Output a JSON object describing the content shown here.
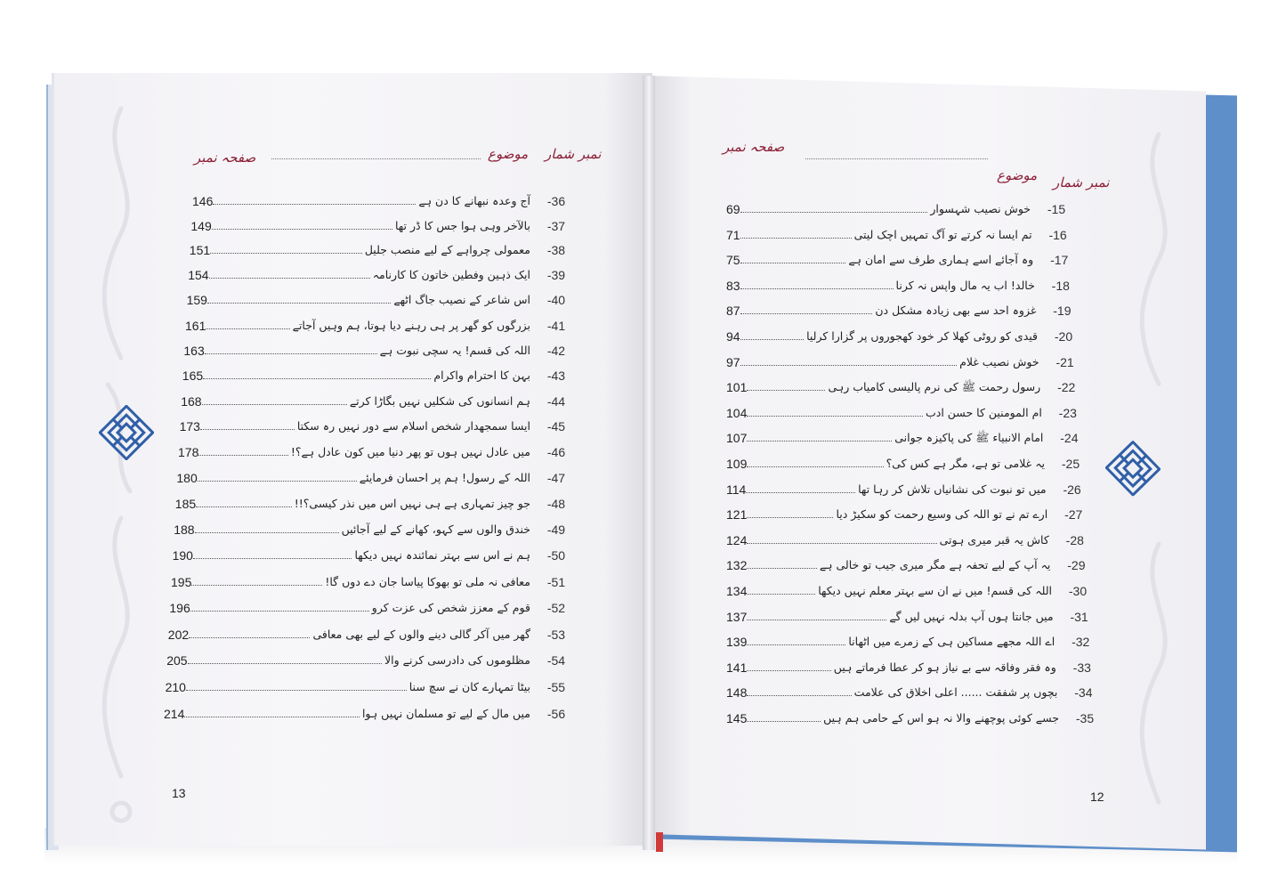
{
  "left_page": {
    "header": {
      "serial": "نمبر شمار",
      "topic": "موضوع",
      "page": "صفحہ نمبر"
    },
    "page_number": "13",
    "entries": [
      {
        "num": "-36",
        "title": "آج وعدہ نبھانے کا دن ہے",
        "page": "146"
      },
      {
        "num": "-37",
        "title": "بالآخر وہی ہوا جس کا ڈر تھا",
        "page": "149"
      },
      {
        "num": "-38",
        "title": "معمولی چرواہے کے لیے منصب جلیل",
        "page": "151"
      },
      {
        "num": "-39",
        "title": "ایک ذہین وفطین خاتون کا کارنامہ",
        "page": "154"
      },
      {
        "num": "-40",
        "title": "اس شاعر کے نصیب جاگ اٹھے",
        "page": "159"
      },
      {
        "num": "-41",
        "title": "بزرگوں کو گھر پر ہی رہنے دیا ہوتا، ہم وہیں آجاتے",
        "page": "161"
      },
      {
        "num": "-42",
        "title": "اللہ کی قسم! یہ سچی نبوت ہے",
        "page": "163"
      },
      {
        "num": "-43",
        "title": "بہن کا احترام واکرام",
        "page": "165"
      },
      {
        "num": "-44",
        "title": "ہم انسانوں کی شکلیں نہیں بگاڑا کرتے",
        "page": "168"
      },
      {
        "num": "-45",
        "title": "ایسا سمجھدار شخص اسلام سے دور نہیں رہ سکتا",
        "page": "173"
      },
      {
        "num": "-46",
        "title": "میں عادل نہیں ہوں تو پھر دنیا میں کون عادل ہے؟!",
        "page": "178"
      },
      {
        "num": "-47",
        "title": "اللہ کے رسول! ہم پر احسان فرمایئے",
        "page": "180"
      },
      {
        "num": "-48",
        "title": "جو چیز تمہاری ہے ہی نہیں اس میں نذر کیسی؟!!",
        "page": "185"
      },
      {
        "num": "-49",
        "title": "خندق والوں سے کہو، کھانے کے لیے آجائیں",
        "page": "188"
      },
      {
        "num": "-50",
        "title": "ہم نے اس سے بہتر نمائندہ نہیں دیکھا",
        "page": "190"
      },
      {
        "num": "-51",
        "title": "معافی نہ ملی تو بھوکا پیاسا جان دے دوں گا!",
        "page": "195"
      },
      {
        "num": "-52",
        "title": "قوم کے معزز شخص کی عزت کرو",
        "page": "196"
      },
      {
        "num": "-53",
        "title": "گھر میں آکر گالی دینے والوں کے لیے بھی معافی",
        "page": "202"
      },
      {
        "num": "-54",
        "title": "مظلوموں کی دادرسی کرنے والا",
        "page": "205"
      },
      {
        "num": "-55",
        "title": "بیٹا تمہارے کان نے سچ سنا",
        "page": "210"
      },
      {
        "num": "-56",
        "title": "میں مال کے لیے تو مسلمان نہیں ہوا",
        "page": "214"
      }
    ]
  },
  "right_page": {
    "header": {
      "serial": "نمبر شمار",
      "topic": "موضوع",
      "page": "صفحہ نمبر"
    },
    "page_number": "12",
    "entries": [
      {
        "num": "-15",
        "title": "خوش نصیب شہسوار",
        "page": "69"
      },
      {
        "num": "-16",
        "title": "تم ایسا نہ کرتے تو آگ تمہیں اچک لیتی",
        "page": "71"
      },
      {
        "num": "-17",
        "title": "وہ آجائے اسے ہماری طرف سے امان ہے",
        "page": "75"
      },
      {
        "num": "-18",
        "title": "خالد! اب یہ مال واپس نہ کرنا",
        "page": "83"
      },
      {
        "num": "-19",
        "title": "غزوہ احد سے بھی زیادہ مشکل دن",
        "page": "87"
      },
      {
        "num": "-20",
        "title": "قیدی کو روٹی کھلا کر خود کھجوروں پر گزارا کرلیا",
        "page": "94"
      },
      {
        "num": "-21",
        "title": "خوش نصیب غلام",
        "page": "97"
      },
      {
        "num": "-22",
        "title": "رسول رحمت ﷺ کی نرم پالیسی کامیاب رہی",
        "page": "101"
      },
      {
        "num": "-23",
        "title": "ام المومنین کا حسن ادب",
        "page": "104"
      },
      {
        "num": "-24",
        "title": "امام الانبیاء ﷺ کی پاکیزہ جوانی",
        "page": "107"
      },
      {
        "num": "-25",
        "title": "یہ غلامی تو ہے، مگر ہے کس کی؟",
        "page": "109"
      },
      {
        "num": "-26",
        "title": "میں تو نبوت کی نشانیاں تلاش کر رہا تھا",
        "page": "114"
      },
      {
        "num": "-27",
        "title": "ارے تم نے تو اللہ کی وسیع رحمت کو سکیڑ دیا",
        "page": "121"
      },
      {
        "num": "-28",
        "title": "کاش یہ قبر میری ہوتی",
        "page": "124"
      },
      {
        "num": "-29",
        "title": "یہ آپ کے لیے تحفہ ہے مگر میری جیب تو خالی ہے",
        "page": "132"
      },
      {
        "num": "-30",
        "title": "اللہ کی قسم! میں نے ان سے بہتر معلم نہیں دیکھا",
        "page": "134"
      },
      {
        "num": "-31",
        "title": "میں جانتا ہوں آپ بدلہ نہیں لیں گے",
        "page": "137"
      },
      {
        "num": "-32",
        "title": "اے اللہ مجھے مساکین ہی کے زمرے میں اٹھانا",
        "page": "139"
      },
      {
        "num": "-33",
        "title": "وہ فقر وفاقہ سے بے نیاز ہو کر عطا فرماتے ہیں",
        "page": "141"
      },
      {
        "num": "-34",
        "title": "بچوں پر شفقت ...... اعلی اخلاق کی علامت",
        "page": "148"
      },
      {
        "num": "-35",
        "title": "جسے کوئی پوچھنے والا نہ ہو اس کے حامی ہم ہیں",
        "page": "145"
      }
    ]
  },
  "colors": {
    "header": "#8b1f35",
    "cover": "#5e8fc9",
    "emblem": "#2f5fa8"
  },
  "icons": {
    "emblem": "square-kufic-knot-icon"
  }
}
